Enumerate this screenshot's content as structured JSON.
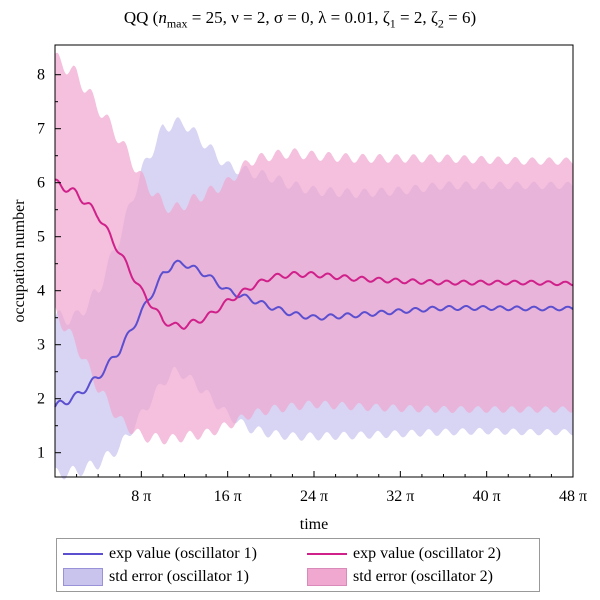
{
  "chart_data": {
    "type": "area",
    "title": {
      "prefix": "QQ  (",
      "n_symbol": "n",
      "n_sub": "max",
      "rest1": " = 25, ν = 2, σ = 0, λ = 0.01, ζ",
      "z1_sub": "1",
      "rest2": " = 2, ζ",
      "z2_sub": "2",
      "rest3": " = 6)"
    },
    "xlabel": "time",
    "ylabel": "occupation number",
    "xlim": [
      0,
      48
    ],
    "ylim": [
      0.55,
      8.55
    ],
    "x_unit": "π",
    "x_ticks": [
      {
        "value": 8,
        "label": "8 π"
      },
      {
        "value": 16,
        "label": "16 π"
      },
      {
        "value": 24,
        "label": "24 π"
      },
      {
        "value": 32,
        "label": "32 π"
      },
      {
        "value": 40,
        "label": "40 π"
      },
      {
        "value": 48,
        "label": "48 π"
      }
    ],
    "y_ticks": [
      1,
      2,
      3,
      4,
      5,
      6,
      7,
      8
    ],
    "x": [
      0,
      2,
      4,
      6,
      8,
      10,
      11,
      12,
      14,
      16,
      18,
      20,
      22,
      24,
      28,
      32,
      36,
      40,
      44,
      48
    ],
    "series": [
      {
        "name": "exp value (oscillator 1)",
        "color": "#5b4fd0",
        "values": [
          1.85,
          2.05,
          2.4,
          2.9,
          3.6,
          4.3,
          4.5,
          4.5,
          4.3,
          4.0,
          3.85,
          3.7,
          3.57,
          3.5,
          3.55,
          3.62,
          3.68,
          3.68,
          3.67,
          3.67
        ]
      },
      {
        "name": "exp value (oscillator 2)",
        "color": "#d0208a",
        "values": [
          6.0,
          5.8,
          5.4,
          4.7,
          4.0,
          3.45,
          3.35,
          3.35,
          3.5,
          3.8,
          4.05,
          4.25,
          4.3,
          4.3,
          4.22,
          4.18,
          4.15,
          4.15,
          4.15,
          4.13
        ]
      }
    ],
    "bands": [
      {
        "name": "std error (oscillator 1)",
        "color": "#c9c4ee",
        "lower": [
          0.6,
          0.65,
          0.8,
          1.1,
          1.7,
          2.3,
          2.5,
          2.45,
          2.1,
          1.7,
          1.45,
          1.35,
          1.3,
          1.3,
          1.32,
          1.35,
          1.38,
          1.4,
          1.38,
          1.38
        ],
        "upper": [
          3.5,
          3.5,
          4.0,
          5.0,
          6.2,
          7.0,
          7.1,
          7.1,
          6.7,
          6.3,
          6.2,
          6.1,
          5.95,
          5.85,
          5.8,
          5.85,
          5.95,
          5.95,
          5.95,
          5.95
        ]
      },
      {
        "name": "std error (oscillator 2)",
        "color": "#f0a8d0",
        "lower": [
          3.6,
          3.0,
          2.2,
          1.6,
          1.3,
          1.25,
          1.25,
          1.3,
          1.35,
          1.5,
          1.7,
          1.8,
          1.85,
          1.9,
          1.85,
          1.82,
          1.8,
          1.8,
          1.8,
          1.8
        ],
        "upper": [
          8.3,
          8.0,
          7.4,
          6.8,
          6.1,
          5.6,
          5.5,
          5.6,
          5.8,
          6.0,
          6.4,
          6.5,
          6.55,
          6.5,
          6.45,
          6.45,
          6.45,
          6.42,
          6.4,
          6.4
        ]
      }
    ],
    "legend": {
      "placement": "bottom",
      "items": [
        {
          "label": "exp value (oscillator 1)",
          "kind": "line",
          "color": "#5b4fd0"
        },
        {
          "label": "exp value (oscillator 2)",
          "kind": "line",
          "color": "#d0208a"
        },
        {
          "label": "std error (oscillator 1)",
          "kind": "box",
          "color": "#c9c4ee"
        },
        {
          "label": "std error (oscillator 2)",
          "kind": "box",
          "color": "#f0a8d0"
        }
      ]
    }
  }
}
